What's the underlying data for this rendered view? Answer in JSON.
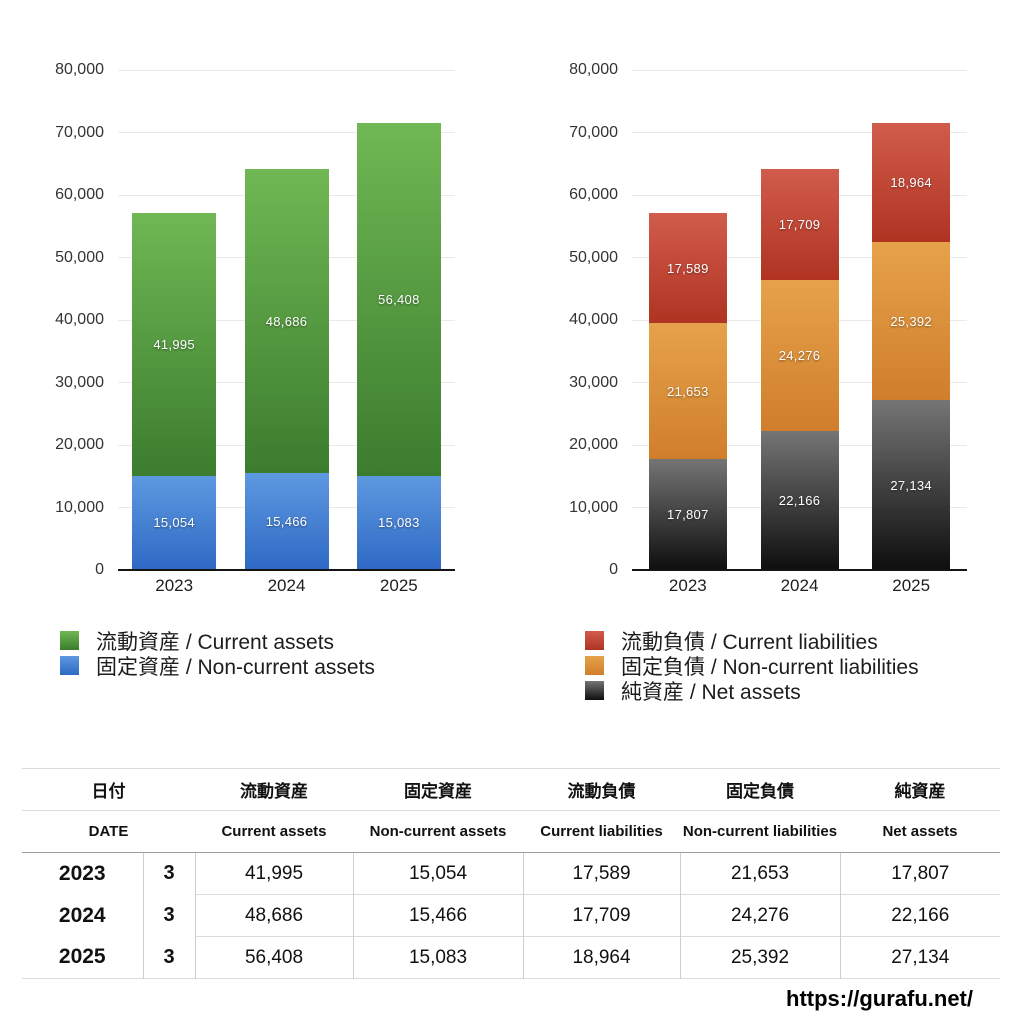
{
  "page": {
    "footer_url": "https://gurafu.net/",
    "background_color": "#ffffff"
  },
  "chart_data": [
    {
      "type": "bar",
      "stacked": true,
      "title": "",
      "categories": [
        "2023",
        "2024",
        "2025"
      ],
      "series": [
        {
          "name": "流動資産 / Current assets",
          "values": [
            41995,
            48686,
            56408
          ],
          "color_top": "#6FB854",
          "color_bottom": "#3C7C2E"
        },
        {
          "name": "固定資産 / Non-current assets",
          "values": [
            15054,
            15466,
            15083
          ],
          "color_top": "#5D99E0",
          "color_bottom": "#2F69C5"
        }
      ],
      "stack_order": "last-series-at-bottom",
      "ylim": [
        0,
        80000
      ],
      "ytick_step": 10000,
      "grid": true,
      "legend_position": "bottom-left",
      "value_labels": "inside-center",
      "xlabel": "",
      "ylabel": ""
    },
    {
      "type": "bar",
      "stacked": true,
      "title": "",
      "categories": [
        "2023",
        "2024",
        "2025"
      ],
      "series": [
        {
          "name": "流動負債 / Current liabilities",
          "values": [
            17589,
            17709,
            18964
          ],
          "color_top": "#D15C4B",
          "color_bottom": "#B03322"
        },
        {
          "name": "固定負債 / Non-current liabilities",
          "values": [
            21653,
            24276,
            25392
          ],
          "color_top": "#E6A24A",
          "color_bottom": "#D07E2B"
        },
        {
          "name": "純資産 / Net assets",
          "values": [
            17807,
            22166,
            27134
          ],
          "color_top": "#757575",
          "color_bottom": "#0E0E0E"
        }
      ],
      "stack_order": "last-series-at-bottom",
      "ylim": [
        0,
        80000
      ],
      "ytick_step": 10000,
      "grid": true,
      "legend_position": "bottom-left",
      "value_labels": "inside-center",
      "xlabel": "",
      "ylabel": ""
    }
  ],
  "table": {
    "header_ja": [
      "日付",
      "流動資産",
      "固定資産",
      "流動負債",
      "固定負債",
      "純資産"
    ],
    "header_en": [
      "DATE",
      "Current assets",
      "Non-current assets",
      "Current liabilities",
      "Non-current liabilities",
      "Net assets"
    ],
    "rows": [
      {
        "year": "2023",
        "month": "3",
        "values": [
          "41,995",
          "15,054",
          "17,589",
          "21,653",
          "17,807"
        ]
      },
      {
        "year": "2024",
        "month": "3",
        "values": [
          "48,686",
          "15,466",
          "17,709",
          "24,276",
          "22,166"
        ]
      },
      {
        "year": "2025",
        "month": "3",
        "values": [
          "56,408",
          "15,083",
          "18,964",
          "25,392",
          "27,134"
        ]
      }
    ]
  }
}
